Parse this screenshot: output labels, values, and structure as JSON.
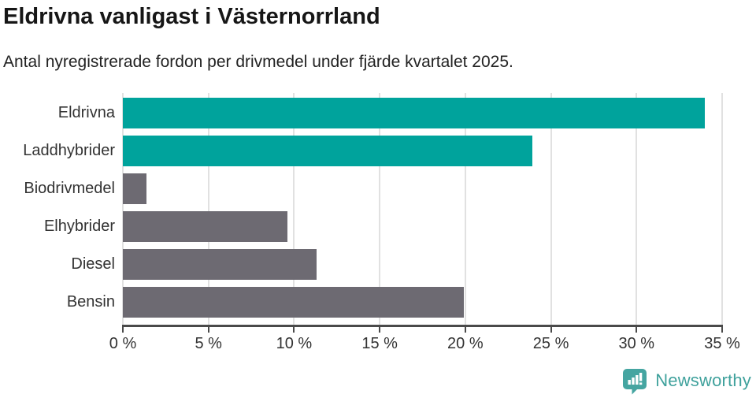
{
  "header": {
    "title": "Eldrivna vanligast i Västernorrland",
    "subtitle": "Antal nyregistrerade fordon per drivmedel under fjärde kvartalet 2025."
  },
  "chart_data": {
    "type": "bar",
    "orientation": "horizontal",
    "title": "Eldrivna vanligast i Västernorrland",
    "subtitle": "Antal nyregistrerade fordon per drivmedel under fjärde kvartalet 2025.",
    "categories": [
      "Eldrivna",
      "Laddhybrider",
      "Biodrivmedel",
      "Elhybrider",
      "Diesel",
      "Bensin"
    ],
    "values": [
      34.0,
      23.9,
      1.4,
      9.6,
      11.3,
      19.9
    ],
    "unit": "%",
    "xlabel": "",
    "ylabel": "",
    "xlim": [
      0,
      35
    ],
    "x_ticks": [
      0,
      5,
      10,
      15,
      20,
      25,
      30,
      35
    ],
    "x_tick_labels": [
      "0 %",
      "5 %",
      "10 %",
      "15 %",
      "20 %",
      "25 %",
      "30 %",
      "35 %"
    ],
    "bar_colors": [
      "#00A39C",
      "#00A39C",
      "#6D6A72",
      "#6D6A72",
      "#6D6A72",
      "#6D6A72"
    ],
    "highlight_color": "#00A39C",
    "base_color": "#6D6A72",
    "grid": true,
    "gridline_color": "#e1e1e1",
    "axis_color": "#4a4a4a",
    "legend": "none"
  },
  "footer": {
    "brand": "Newsworthy",
    "brand_color": "#3FA19C",
    "icon_color": "#45A5A1",
    "icon": "newsworthy-chart-bubble"
  }
}
